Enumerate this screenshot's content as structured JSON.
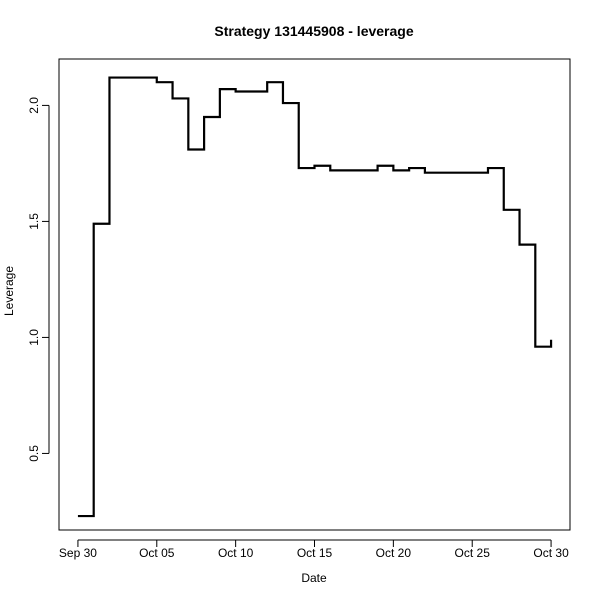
{
  "chart_data": {
    "type": "line",
    "style": "step",
    "title": "Strategy 131445908 - leverage",
    "xlabel": "Date",
    "ylabel": "Leverage",
    "x_ticks": [
      {
        "day": 0,
        "label": "Sep 30"
      },
      {
        "day": 5,
        "label": "Oct 05"
      },
      {
        "day": 10,
        "label": "Oct 10"
      },
      {
        "day": 15,
        "label": "Oct 15"
      },
      {
        "day": 20,
        "label": "Oct 20"
      },
      {
        "day": 25,
        "label": "Oct 25"
      },
      {
        "day": 30,
        "label": "Oct 30"
      }
    ],
    "y_ticks": [
      0.5,
      1.0,
      1.5,
      2.0
    ],
    "xlim": [
      -1.2,
      31.2
    ],
    "ylim": [
      0.17,
      2.2
    ],
    "grid": false,
    "series": [
      {
        "color": "#000000",
        "points": [
          [
            0,
            0.23
          ],
          [
            1,
            1.49
          ],
          [
            2,
            2.12
          ],
          [
            3,
            2.12
          ],
          [
            4,
            2.12
          ],
          [
            5,
            2.1
          ],
          [
            6,
            2.03
          ],
          [
            7,
            1.81
          ],
          [
            8,
            1.95
          ],
          [
            9,
            2.07
          ],
          [
            10,
            2.06
          ],
          [
            11,
            2.06
          ],
          [
            12,
            2.1
          ],
          [
            13,
            2.01
          ],
          [
            14,
            1.73
          ],
          [
            15,
            1.74
          ],
          [
            16,
            1.72
          ],
          [
            17,
            1.72
          ],
          [
            18,
            1.72
          ],
          [
            19,
            1.74
          ],
          [
            20,
            1.72
          ],
          [
            21,
            1.73
          ],
          [
            22,
            1.71
          ],
          [
            23,
            1.71
          ],
          [
            24,
            1.71
          ],
          [
            25,
            1.71
          ],
          [
            26,
            1.73
          ],
          [
            27,
            1.55
          ],
          [
            28,
            1.4
          ],
          [
            29,
            0.96
          ],
          [
            30,
            0.99
          ]
        ]
      }
    ]
  }
}
